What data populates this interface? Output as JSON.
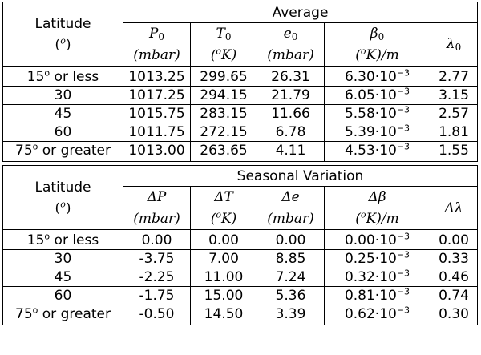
{
  "average_table": {
    "latitude_header": "Latitude",
    "latitude_unit_open": "(",
    "latitude_unit_sup": "o",
    "latitude_unit_close": ")",
    "group_header": "Average",
    "columns": [
      {
        "symbol": "P",
        "sub": "0",
        "unit": "(mbar)"
      },
      {
        "symbol": "T",
        "sub": "0",
        "unit_pre": "(",
        "unit_sup": "o",
        "unit_post": "K)"
      },
      {
        "symbol": "e",
        "sub": "0",
        "unit": "(mbar)"
      },
      {
        "symbol": "β",
        "sub": "0",
        "unit_pre": "(",
        "unit_sup": "o",
        "unit_post": "K)/m"
      },
      {
        "symbol": "λ",
        "sub": "0",
        "unit": ""
      }
    ],
    "rows": [
      {
        "lat_pre": "15",
        "lat_sup": "o",
        "lat_post": " or less",
        "v1": "1013.25",
        "v2": "299.65",
        "v3": "26.31",
        "v4_base": "6.30·10",
        "v4_exp": "−3",
        "v5": "2.77"
      },
      {
        "lat_pre": "30",
        "lat_sup": "",
        "lat_post": "",
        "v1": "1017.25",
        "v2": "294.15",
        "v3": "21.79",
        "v4_base": "6.05·10",
        "v4_exp": "−3",
        "v5": "3.15"
      },
      {
        "lat_pre": "45",
        "lat_sup": "",
        "lat_post": "",
        "v1": "1015.75",
        "v2": "283.15",
        "v3": "11.66",
        "v4_base": "5.58·10",
        "v4_exp": "−3",
        "v5": "2.57"
      },
      {
        "lat_pre": "60",
        "lat_sup": "",
        "lat_post": "",
        "v1": "1011.75",
        "v2": "272.15",
        "v3": "6.78",
        "v4_base": "5.39·10",
        "v4_exp": "−3",
        "v5": "1.81"
      },
      {
        "lat_pre": "75",
        "lat_sup": "o",
        "lat_post": " or greater",
        "v1": "1013.00",
        "v2": "263.65",
        "v3": "4.11",
        "v4_base": "4.53·10",
        "v4_exp": "−3",
        "v5": "1.55"
      }
    ]
  },
  "seasonal_table": {
    "latitude_header": "Latitude",
    "latitude_unit_open": "(",
    "latitude_unit_sup": "o",
    "latitude_unit_close": ")",
    "group_header": "Seasonal Variation",
    "columns": [
      {
        "symbol": "ΔP",
        "unit": "(mbar)"
      },
      {
        "symbol": "ΔT",
        "unit_pre": "(",
        "unit_sup": "o",
        "unit_post": "K)"
      },
      {
        "symbol": "Δe",
        "unit": "(mbar)"
      },
      {
        "symbol": "Δβ",
        "unit_pre": "(",
        "unit_sup": "o",
        "unit_post": "K)/m"
      },
      {
        "symbol": "Δλ",
        "unit": ""
      }
    ],
    "rows": [
      {
        "lat_pre": "15",
        "lat_sup": "o",
        "lat_post": " or less",
        "v1": "0.00",
        "v2": "0.00",
        "v3": "0.00",
        "v4_base": "0.00·10",
        "v4_exp": "−3",
        "v5": "0.00"
      },
      {
        "lat_pre": "30",
        "lat_sup": "",
        "lat_post": "",
        "v1": "-3.75",
        "v2": "7.00",
        "v3": "8.85",
        "v4_base": "0.25·10",
        "v4_exp": "−3",
        "v5": "0.33"
      },
      {
        "lat_pre": "45",
        "lat_sup": "",
        "lat_post": "",
        "v1": "-2.25",
        "v2": "11.00",
        "v3": "7.24",
        "v4_base": "0.32·10",
        "v4_exp": "−3",
        "v5": "0.46"
      },
      {
        "lat_pre": "60",
        "lat_sup": "",
        "lat_post": "",
        "v1": "-1.75",
        "v2": "15.00",
        "v3": "5.36",
        "v4_base": "0.81·10",
        "v4_exp": "−3",
        "v5": "0.74"
      },
      {
        "lat_pre": "75",
        "lat_sup": "o",
        "lat_post": " or greater",
        "v1": "-0.50",
        "v2": "14.50",
        "v3": "3.39",
        "v4_base": "0.62·10",
        "v4_exp": "−3",
        "v5": "0.30"
      }
    ]
  }
}
